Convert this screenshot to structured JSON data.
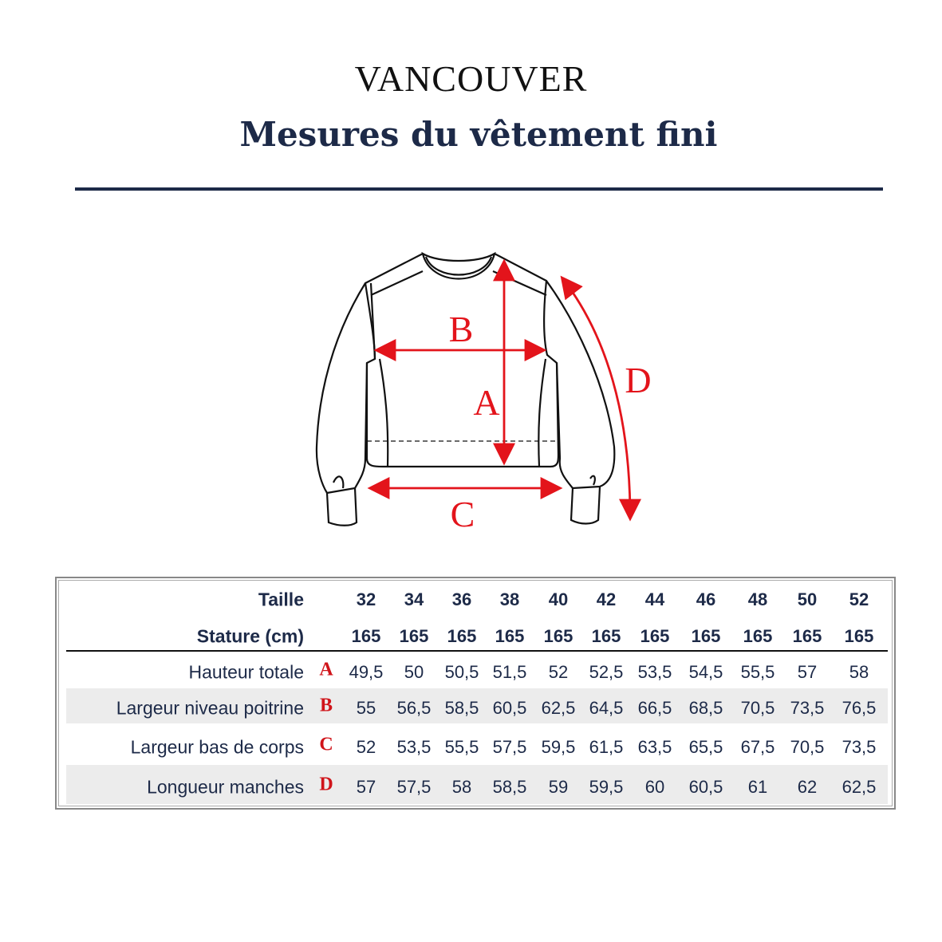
{
  "header": {
    "brand": "VANCOUVER",
    "title": "Mesures du vêtement fini"
  },
  "diagram": {
    "labels": [
      "A",
      "B",
      "C",
      "D"
    ],
    "arrow_color": "#e3141b"
  },
  "table": {
    "size_label": "Taille",
    "stature_label": "Stature (cm)",
    "sizes": [
      "32",
      "34",
      "36",
      "38",
      "40",
      "42",
      "44",
      "46",
      "48",
      "50",
      "52"
    ],
    "stature": [
      "165",
      "165",
      "165",
      "165",
      "165",
      "165",
      "165",
      "165",
      "165",
      "165",
      "165"
    ],
    "rows": [
      {
        "label": "Hauteur totale",
        "letter": "A",
        "values": [
          "49,5",
          "50",
          "50,5",
          "51,5",
          "52",
          "52,5",
          "53,5",
          "54,5",
          "55,5",
          "57",
          "58"
        ]
      },
      {
        "label": "Largeur niveau poitrine",
        "letter": "B",
        "values": [
          "55",
          "56,5",
          "58,5",
          "60,5",
          "62,5",
          "64,5",
          "66,5",
          "68,5",
          "70,5",
          "73,5",
          "76,5"
        ]
      },
      {
        "label": "Largeur bas de corps",
        "letter": "C",
        "values": [
          "52",
          "53,5",
          "55,5",
          "57,5",
          "59,5",
          "61,5",
          "63,5",
          "65,5",
          "67,5",
          "70,5",
          "73,5"
        ]
      },
      {
        "label": "Longueur manches",
        "letter": "D",
        "values": [
          "57",
          "57,5",
          "58",
          "58,5",
          "59",
          "59,5",
          "60",
          "60,5",
          "61",
          "62",
          "62,5"
        ]
      }
    ]
  },
  "colors": {
    "navy": "#1d2a48",
    "red": "#d0141a",
    "band": "#ececec"
  }
}
